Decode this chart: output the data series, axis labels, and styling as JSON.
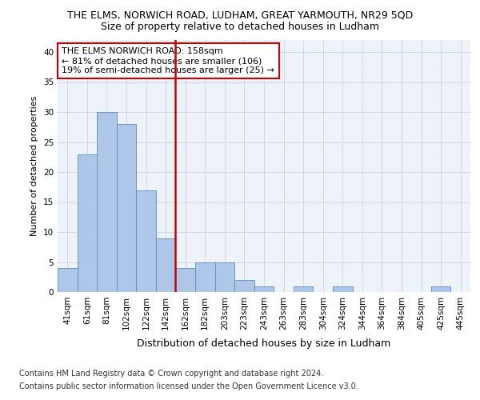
{
  "title": "THE ELMS, NORWICH ROAD, LUDHAM, GREAT YARMOUTH, NR29 5QD",
  "subtitle": "Size of property relative to detached houses in Ludham",
  "xlabel": "Distribution of detached houses by size in Ludham",
  "ylabel": "Number of detached properties",
  "categories": [
    "41sqm",
    "61sqm",
    "81sqm",
    "102sqm",
    "122sqm",
    "142sqm",
    "162sqm",
    "182sqm",
    "203sqm",
    "223sqm",
    "243sqm",
    "263sqm",
    "283sqm",
    "304sqm",
    "324sqm",
    "344sqm",
    "364sqm",
    "384sqm",
    "405sqm",
    "425sqm",
    "445sqm"
  ],
  "values": [
    4,
    23,
    30,
    28,
    17,
    9,
    4,
    5,
    5,
    2,
    1,
    0,
    1,
    0,
    1,
    0,
    0,
    0,
    0,
    1,
    0
  ],
  "bar_color": "#aec6e8",
  "bar_edge_color": "#5a8fc0",
  "highlight_line_color": "#cc0000",
  "annotation_text": "THE ELMS NORWICH ROAD: 158sqm\n← 81% of detached houses are smaller (106)\n19% of semi-detached houses are larger (25) →",
  "annotation_box_color": "#cc0000",
  "ylim": [
    0,
    42
  ],
  "yticks": [
    0,
    5,
    10,
    15,
    20,
    25,
    30,
    35,
    40
  ],
  "grid_color": "#d0d8e8",
  "background_color": "#eef2f9",
  "footer_line1": "Contains HM Land Registry data © Crown copyright and database right 2024.",
  "footer_line2": "Contains public sector information licensed under the Open Government Licence v3.0.",
  "title_fontsize": 9,
  "subtitle_fontsize": 9,
  "xlabel_fontsize": 9,
  "ylabel_fontsize": 8,
  "tick_fontsize": 7.5,
  "annotation_fontsize": 8,
  "footer_fontsize": 7
}
